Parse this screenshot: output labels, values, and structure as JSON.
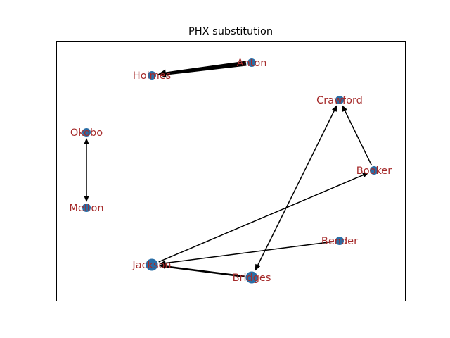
{
  "title": "PHX substitution",
  "colors": {
    "background": "#ffffff",
    "frame": "#000000",
    "node": "#2a6ea6",
    "label": "#a52a2a",
    "edge": "#000000"
  },
  "nodes": [
    {
      "id": "Anton",
      "label": "Anton",
      "size": "small"
    },
    {
      "id": "Holmes",
      "label": "Holmes",
      "size": "small"
    },
    {
      "id": "Crawford",
      "label": "Crawford",
      "size": "small"
    },
    {
      "id": "Okobo",
      "label": "Okobo",
      "size": "small"
    },
    {
      "id": "Booker",
      "label": "Booker",
      "size": "small"
    },
    {
      "id": "Melton",
      "label": "Melton",
      "size": "small"
    },
    {
      "id": "Bender",
      "label": "Bender",
      "size": "small"
    },
    {
      "id": "Jackson",
      "label": "Jackson",
      "size": "large"
    },
    {
      "id": "Bridges",
      "label": "Bridges",
      "size": "large"
    }
  ],
  "edges": [
    {
      "source": "Anton",
      "target": "Holmes",
      "weight": "heavy"
    },
    {
      "source": "Okobo",
      "target": "Melton",
      "weight": "normal",
      "bidirectional": true
    },
    {
      "source": "Booker",
      "target": "Crawford",
      "weight": "normal"
    },
    {
      "source": "Bridges",
      "target": "Crawford",
      "weight": "normal",
      "bidirectional": true
    },
    {
      "source": "Jackson",
      "target": "Booker",
      "weight": "normal"
    },
    {
      "source": "Bender",
      "target": "Jackson",
      "weight": "normal"
    },
    {
      "source": "Bridges",
      "target": "Jackson",
      "weight": "medium"
    }
  ]
}
